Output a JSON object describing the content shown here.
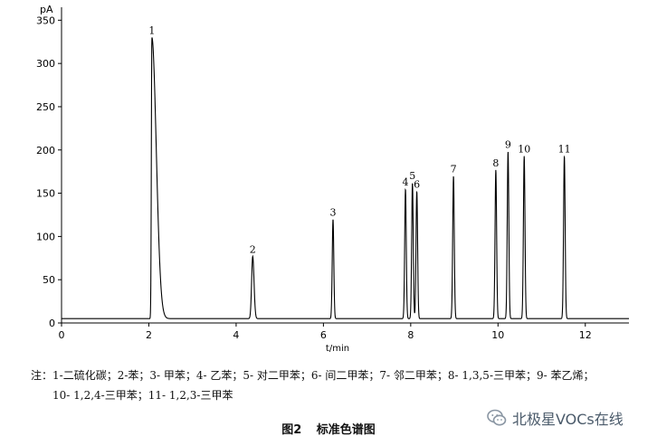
{
  "chart_data": {
    "type": "line",
    "ylabel": "pA",
    "xlabel": "t/min",
    "xlim": [
      0,
      13
    ],
    "ylim": [
      0,
      365
    ],
    "x_ticks": [
      0,
      2,
      4,
      6,
      8,
      10,
      12
    ],
    "y_ticks": [
      0,
      50,
      100,
      150,
      200,
      250,
      300,
      350
    ],
    "baseline": 5,
    "peaks": [
      {
        "label": "1",
        "x": 2.07,
        "y": 330
      },
      {
        "label": "2",
        "x": 4.38,
        "y": 77
      },
      {
        "label": "3",
        "x": 6.22,
        "y": 120
      },
      {
        "label": "4",
        "x": 7.88,
        "y": 155
      },
      {
        "label": "5",
        "x": 8.04,
        "y": 162
      },
      {
        "label": "6",
        "x": 8.14,
        "y": 152
      },
      {
        "label": "7",
        "x": 8.98,
        "y": 170
      },
      {
        "label": "8",
        "x": 9.95,
        "y": 177
      },
      {
        "label": "9",
        "x": 10.23,
        "y": 198
      },
      {
        "label": "10",
        "x": 10.6,
        "y": 193
      },
      {
        "label": "11",
        "x": 11.52,
        "y": 193
      }
    ]
  },
  "note": {
    "line1": "注：1-二硫化碳；2-苯；3- 甲苯；4- 乙苯；5- 对二甲苯；6- 间二甲苯；7- 邻二甲苯；8- 1,3,5-三甲苯；9- 苯乙烯；",
    "line2": "10- 1,2,4-三甲苯；11- 1,2,3-三甲苯"
  },
  "caption": {
    "number": "图2",
    "title": "标准色谱图"
  },
  "watermark": {
    "text": "北极星VOCs在线",
    "icon": "wechat-icon"
  }
}
